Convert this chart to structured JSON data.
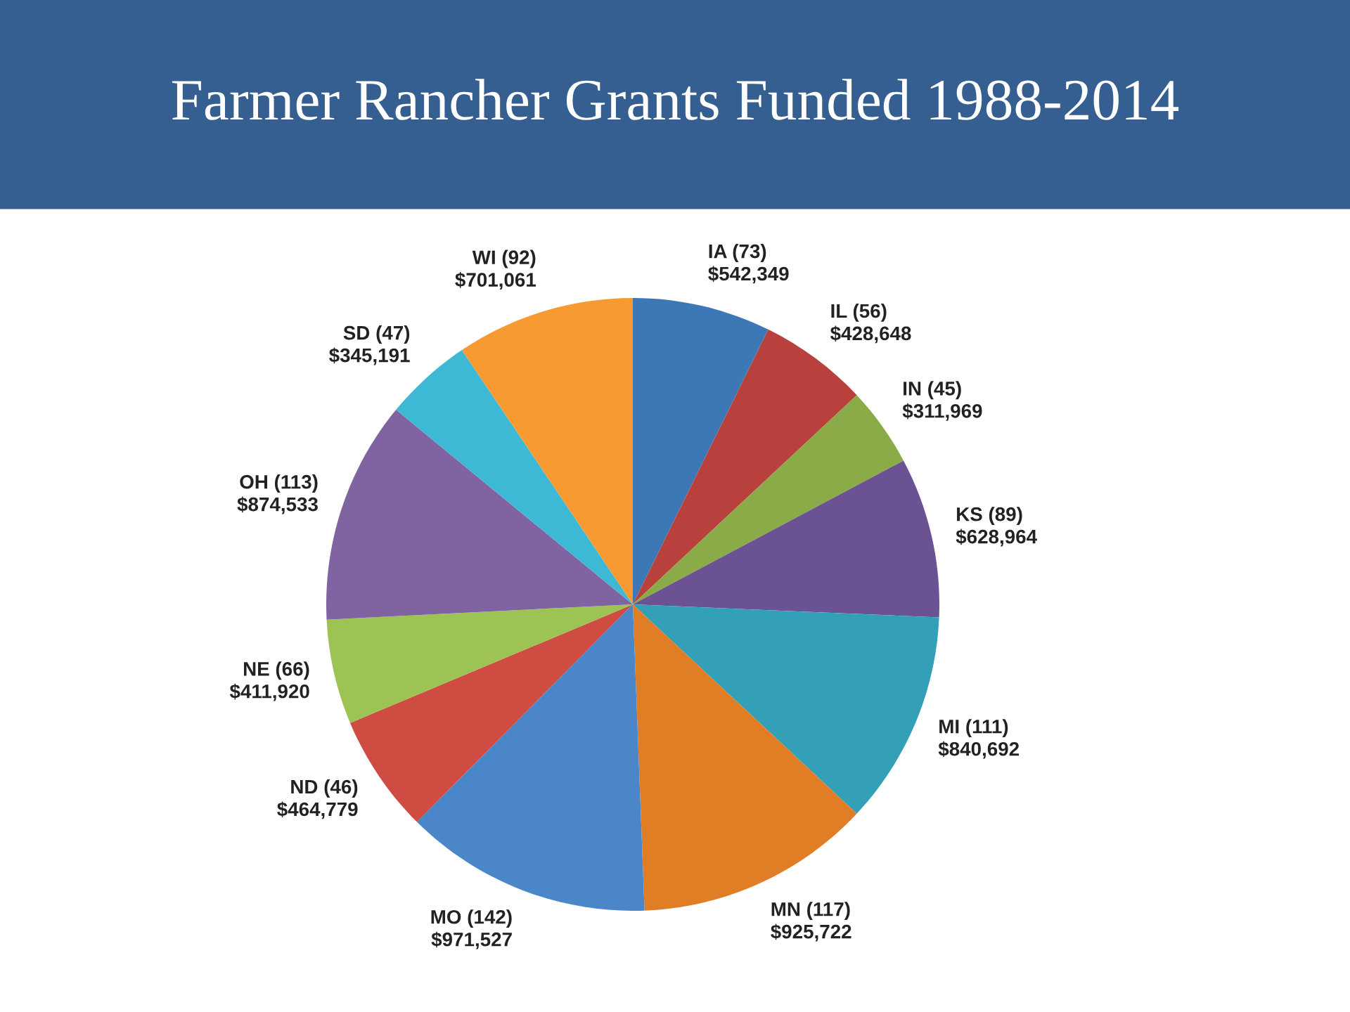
{
  "chart_data": {
    "type": "pie",
    "title": "Farmer Rancher Grants Funded 1988-2014",
    "categories": [
      "IA (73)",
      "IL (56)",
      "IN (45)",
      "KS (89)",
      "MI (111)",
      "MN (117)",
      "MO (142)",
      "ND (46)",
      "NE (66)",
      "OH (113)",
      "SD (47)",
      "WI (92)"
    ],
    "values": [
      542349,
      428648,
      311969,
      628964,
      840692,
      925722,
      971527,
      464779,
      411920,
      874533,
      345191,
      701061
    ],
    "value_labels": [
      "$542,349",
      "$428,648",
      "$311,969",
      "$628,964",
      "$840,692",
      "$925,722",
      "$971,527",
      "$464,779",
      "$411,920",
      "$874,533",
      "$345,191",
      "$701,061"
    ],
    "colors": [
      "#3c78b5",
      "#b8413d",
      "#8aab47",
      "#6b5393",
      "#33a0b8",
      "#e07d25",
      "#4a86c8",
      "#cf4c42",
      "#9dc354",
      "#8064a2",
      "#3db9d6",
      "#f79a32"
    ]
  }
}
